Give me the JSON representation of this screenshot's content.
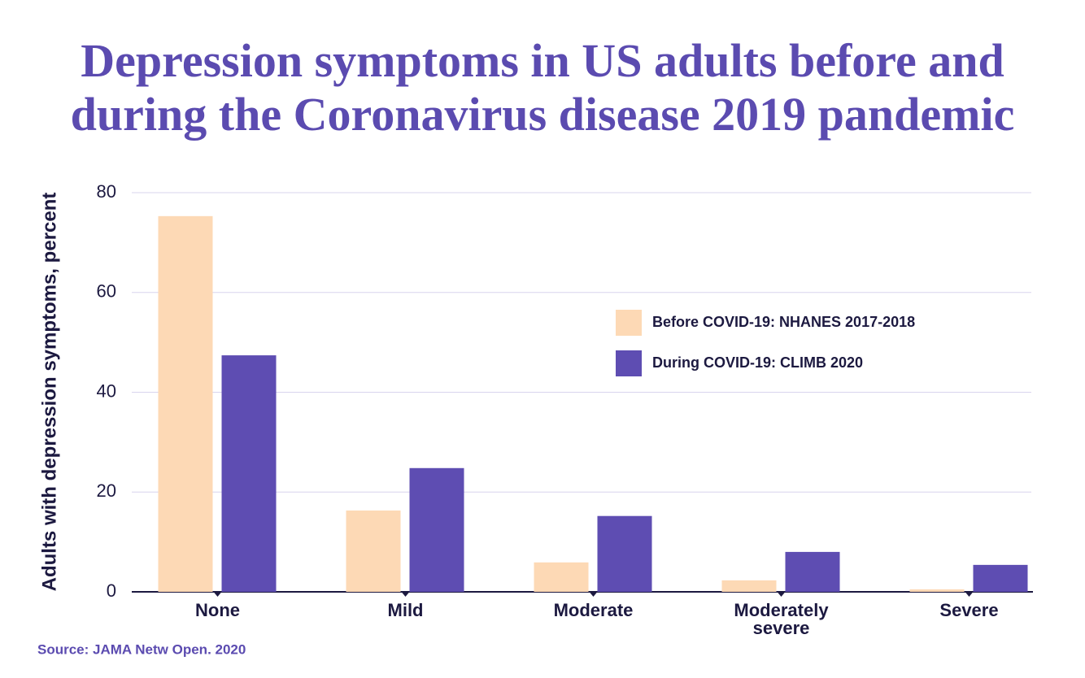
{
  "chart_data": {
    "type": "bar",
    "title": "Depression symptoms in US adults before and during the Coronavirus disease 2019 pandemic",
    "y_label": "Adults with depression symptoms, percent",
    "source": "Source: JAMA Netw Open. 2020",
    "categories": [
      "None",
      "Mild",
      "Moderate",
      "Moderately severe",
      "Severe"
    ],
    "series": [
      {
        "name": "Before COVID-19: NHANES 2017-2018",
        "color": "#fdd9b5",
        "values": [
          75.3,
          16.3,
          5.9,
          2.3,
          0.5
        ]
      },
      {
        "name": "During COVID-19: CLIMB 2020",
        "color": "#5e4db2",
        "values": [
          47.4,
          24.8,
          15.2,
          8.0,
          5.4
        ]
      }
    ],
    "ylim": [
      0,
      80
    ],
    "yticks": [
      0,
      20,
      40,
      60,
      80
    ],
    "grid": true,
    "legend": "right"
  }
}
